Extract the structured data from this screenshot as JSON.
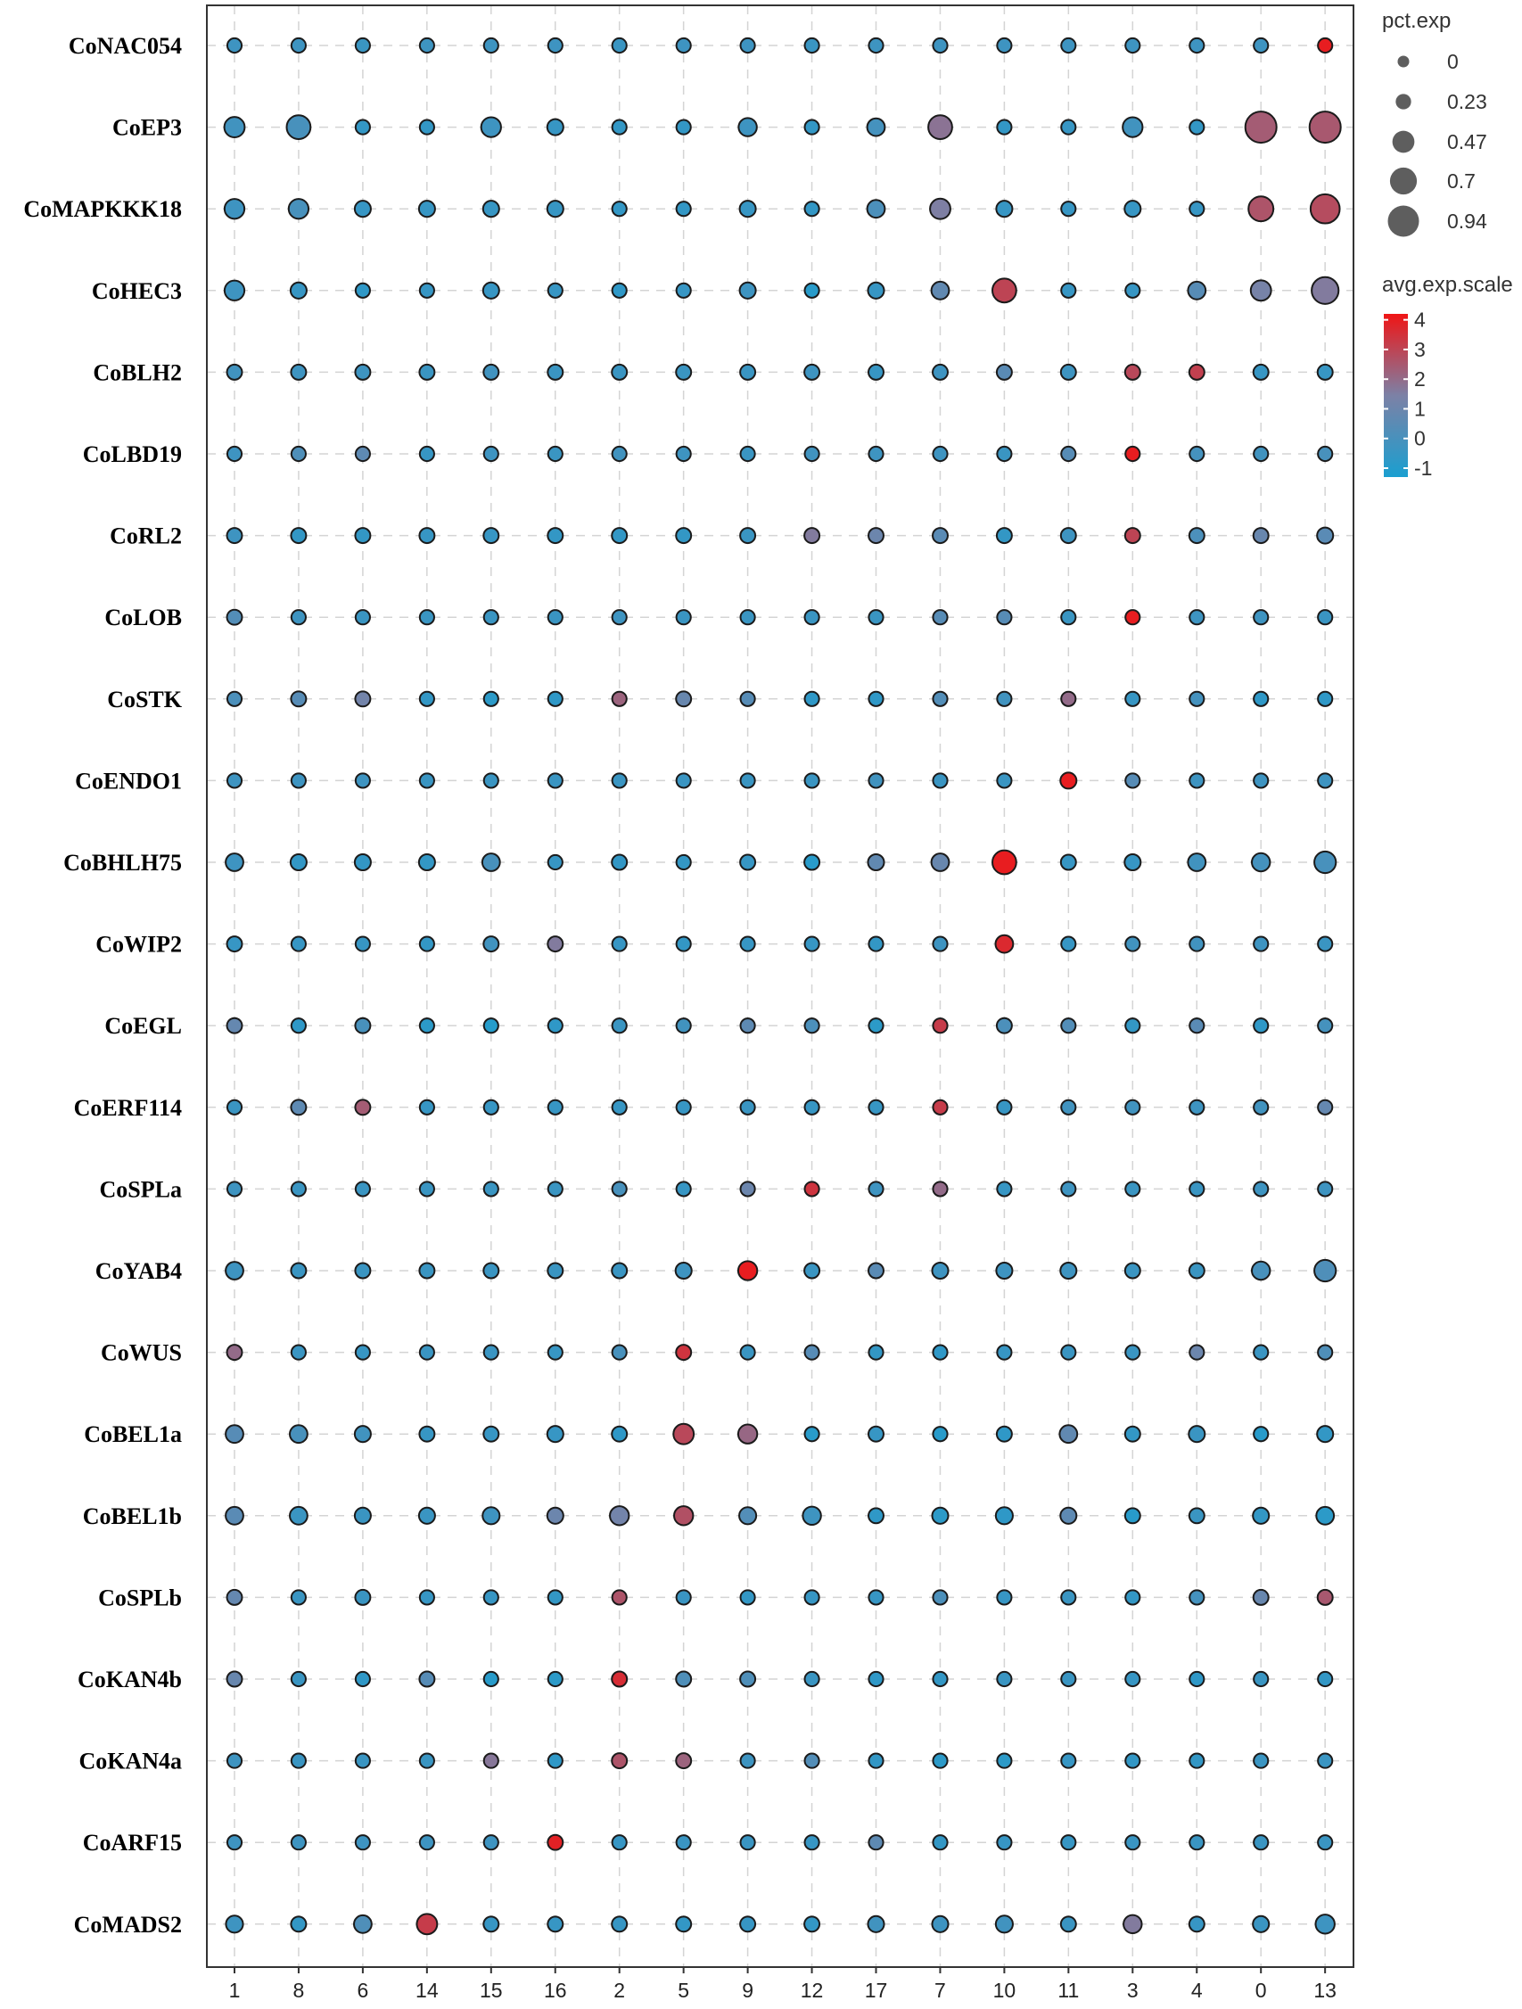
{
  "chart_data": {
    "type": "dotplot",
    "clusters": [
      "1",
      "8",
      "6",
      "14",
      "15",
      "16",
      "2",
      "5",
      "9",
      "12",
      "17",
      "7",
      "10",
      "11",
      "3",
      "4",
      "0",
      "13"
    ],
    "genes": [
      "CoNAC054",
      "CoEP3",
      "CoMAPKKK18",
      "CoHEC3",
      "CoBLH2",
      "CoLBD19",
      "CoRL2",
      "CoLOB",
      "CoSTK",
      "CoENDO1",
      "CoBHLH75",
      "CoWIP2",
      "CoEGL",
      "CoERF114",
      "CoSPLa",
      "CoYAB4",
      "CoWUS",
      "CoBEL1a",
      "CoBEL1b",
      "CoSPLb",
      "CoKAN4b",
      "CoKAN4a",
      "CoARF15",
      "CoMADS2"
    ],
    "avg_exp_scale": [
      [
        -0.3,
        -0.3,
        -0.4,
        -0.3,
        -0.3,
        -0.3,
        -0.4,
        -0.3,
        -0.3,
        -0.4,
        -0.3,
        -0.3,
        -0.3,
        -0.3,
        -0.3,
        -0.3,
        -0.3,
        4.0
      ],
      [
        -0.2,
        0.0,
        -0.6,
        -0.6,
        -0.3,
        -0.5,
        -0.6,
        -0.6,
        -0.3,
        -0.6,
        -0.1,
        1.8,
        -0.6,
        -0.5,
        -0.2,
        -0.6,
        2.4,
        2.5
      ],
      [
        -0.3,
        0.0,
        -0.5,
        -0.5,
        -0.5,
        -0.5,
        -0.6,
        -0.6,
        -0.5,
        -0.6,
        0.1,
        1.5,
        -0.5,
        -0.5,
        -0.5,
        -0.5,
        2.6,
        2.8
      ],
      [
        -0.3,
        -0.5,
        -0.7,
        -0.5,
        -0.5,
        -0.5,
        -0.7,
        -0.5,
        -0.3,
        -0.9,
        -0.5,
        0.7,
        3.0,
        -0.5,
        -0.5,
        0.4,
        1.3,
        1.6
      ],
      [
        -0.2,
        -0.3,
        -0.3,
        -0.4,
        -0.2,
        -0.4,
        -0.4,
        -0.4,
        -0.4,
        -0.3,
        -0.5,
        -0.3,
        0.5,
        -0.3,
        2.9,
        3.1,
        -0.5,
        -0.5
      ],
      [
        -0.3,
        0.2,
        0.6,
        -0.5,
        -0.3,
        -0.4,
        -0.2,
        -0.3,
        -0.4,
        -0.2,
        -0.3,
        -0.3,
        -0.4,
        0.4,
        4.0,
        -0.1,
        -0.2,
        0.0
      ],
      [
        -0.3,
        -0.6,
        -0.6,
        -0.5,
        -0.5,
        -0.6,
        -0.6,
        -0.6,
        -0.4,
        1.6,
        1.0,
        0.5,
        -0.6,
        -0.3,
        3.0,
        0.1,
        0.9,
        0.5
      ],
      [
        0.3,
        -0.3,
        -0.4,
        -0.4,
        -0.4,
        -0.4,
        -0.3,
        -0.4,
        -0.4,
        -0.4,
        -0.4,
        0.4,
        0.4,
        -0.4,
        4.0,
        -0.3,
        -0.3,
        -0.4
      ],
      [
        0.1,
        0.4,
        1.2,
        -0.6,
        -0.8,
        -0.7,
        2.2,
        0.9,
        0.4,
        -0.7,
        -0.7,
        0.3,
        -0.2,
        2.0,
        -0.5,
        -0.1,
        -0.7,
        -0.7
      ],
      [
        -0.3,
        -0.3,
        -0.3,
        -0.4,
        -0.4,
        -0.4,
        -0.4,
        -0.4,
        -0.4,
        -0.4,
        -0.2,
        -0.4,
        -0.4,
        4.0,
        0.4,
        -0.3,
        -0.3,
        -0.3
      ],
      [
        -0.3,
        -0.6,
        -0.6,
        -0.6,
        0.0,
        -0.5,
        -0.6,
        -0.6,
        -0.5,
        -0.9,
        0.7,
        0.9,
        4.0,
        -0.5,
        -0.5,
        -0.2,
        -0.1,
        0.0
      ],
      [
        -0.5,
        -0.5,
        -0.5,
        -0.6,
        -0.2,
        1.6,
        -0.5,
        -0.6,
        -0.5,
        -0.5,
        -0.6,
        -0.3,
        3.7,
        -0.5,
        -0.2,
        -0.2,
        -0.3,
        -0.4
      ],
      [
        0.8,
        -0.7,
        0.0,
        -0.8,
        -1.0,
        -0.7,
        -0.4,
        -0.2,
        0.6,
        0.1,
        -0.8,
        3.2,
        0.1,
        0.3,
        -0.6,
        0.5,
        -0.7,
        -0.1
      ],
      [
        -0.4,
        0.6,
        2.4,
        -0.5,
        -0.5,
        -0.5,
        -0.5,
        -0.5,
        -0.4,
        -0.5,
        -0.5,
        3.2,
        -0.5,
        -0.2,
        -0.2,
        -0.3,
        -0.2,
        0.8
      ],
      [
        -0.3,
        -0.4,
        -0.4,
        -0.4,
        -0.4,
        -0.4,
        0.0,
        -0.5,
        1.0,
        3.4,
        -0.3,
        2.0,
        -0.5,
        -0.3,
        -0.4,
        -0.4,
        -0.3,
        -0.3
      ],
      [
        -0.3,
        -0.4,
        -0.4,
        -0.4,
        -0.4,
        -0.4,
        -0.4,
        -0.3,
        4.0,
        -0.4,
        0.5,
        -0.3,
        -0.3,
        -0.3,
        -0.4,
        -0.4,
        0.0,
        0.2
      ],
      [
        2.0,
        -0.4,
        -0.5,
        -0.4,
        -0.4,
        -0.5,
        0.0,
        3.4,
        -0.4,
        0.4,
        -0.6,
        -0.7,
        -0.5,
        -0.4,
        -0.4,
        1.0,
        -0.4,
        0.2
      ],
      [
        0.4,
        0.0,
        -0.2,
        -0.5,
        -0.5,
        -0.5,
        -0.7,
        2.9,
        2.1,
        -0.9,
        -0.5,
        -0.9,
        -0.7,
        0.7,
        -0.6,
        -0.4,
        -0.9,
        -0.6
      ],
      [
        0.5,
        -0.4,
        -0.4,
        -0.4,
        -0.3,
        1.0,
        1.2,
        2.7,
        0.3,
        -0.3,
        -0.7,
        -0.8,
        -0.7,
        0.6,
        -0.9,
        -0.4,
        -0.6,
        -0.8
      ],
      [
        0.8,
        -0.4,
        -0.4,
        -0.5,
        -0.5,
        -0.6,
        2.6,
        -0.4,
        -0.6,
        -0.5,
        -0.5,
        0.1,
        -0.5,
        -0.4,
        -0.6,
        -0.1,
        0.9,
        2.5
      ],
      [
        0.9,
        -0.4,
        -0.7,
        0.4,
        -0.9,
        -0.8,
        3.6,
        0.2,
        0.2,
        -0.4,
        -0.7,
        -0.6,
        -0.4,
        -0.4,
        -0.5,
        -0.7,
        -0.4,
        -0.6
      ],
      [
        -0.3,
        -0.4,
        -0.4,
        -0.4,
        1.7,
        -0.7,
        2.6,
        2.2,
        -0.3,
        0.3,
        -0.6,
        -0.8,
        -0.8,
        -0.5,
        -0.6,
        -0.6,
        -0.4,
        -0.4
      ],
      [
        -0.3,
        -0.3,
        -0.3,
        -0.3,
        -0.3,
        3.9,
        -0.5,
        -0.4,
        -0.4,
        -0.5,
        0.6,
        -0.6,
        -0.5,
        -0.5,
        -0.4,
        -0.4,
        -0.4,
        -0.4
      ],
      [
        -0.3,
        -0.6,
        0.2,
        3.2,
        -0.5,
        -0.5,
        -0.5,
        -0.6,
        -0.5,
        -0.6,
        -0.2,
        -0.3,
        -0.2,
        -0.4,
        1.6,
        -0.5,
        -0.4,
        -0.3
      ]
    ],
    "pct_exp": [
      [
        0.2,
        0.2,
        0.2,
        0.2,
        0.2,
        0.2,
        0.2,
        0.2,
        0.2,
        0.2,
        0.2,
        0.2,
        0.2,
        0.2,
        0.2,
        0.2,
        0.2,
        0.2
      ],
      [
        0.4,
        0.55,
        0.2,
        0.2,
        0.38,
        0.25,
        0.2,
        0.2,
        0.32,
        0.2,
        0.3,
        0.55,
        0.2,
        0.2,
        0.38,
        0.2,
        0.94,
        0.94
      ],
      [
        0.38,
        0.38,
        0.25,
        0.25,
        0.25,
        0.25,
        0.2,
        0.2,
        0.25,
        0.2,
        0.3,
        0.4,
        0.25,
        0.2,
        0.25,
        0.2,
        0.6,
        0.82
      ],
      [
        0.38,
        0.25,
        0.2,
        0.2,
        0.25,
        0.2,
        0.2,
        0.2,
        0.25,
        0.2,
        0.25,
        0.3,
        0.55,
        0.2,
        0.2,
        0.3,
        0.4,
        0.7
      ],
      [
        0.22,
        0.22,
        0.22,
        0.22,
        0.22,
        0.22,
        0.22,
        0.22,
        0.22,
        0.22,
        0.22,
        0.22,
        0.22,
        0.22,
        0.22,
        0.22,
        0.22,
        0.22
      ],
      [
        0.2,
        0.2,
        0.2,
        0.2,
        0.2,
        0.2,
        0.2,
        0.2,
        0.2,
        0.2,
        0.2,
        0.2,
        0.2,
        0.2,
        0.2,
        0.2,
        0.2,
        0.2
      ],
      [
        0.22,
        0.22,
        0.22,
        0.22,
        0.22,
        0.22,
        0.22,
        0.22,
        0.22,
        0.22,
        0.22,
        0.22,
        0.22,
        0.22,
        0.22,
        0.22,
        0.22,
        0.25
      ],
      [
        0.22,
        0.2,
        0.2,
        0.2,
        0.2,
        0.2,
        0.2,
        0.2,
        0.2,
        0.2,
        0.2,
        0.2,
        0.2,
        0.2,
        0.2,
        0.2,
        0.2,
        0.2
      ],
      [
        0.2,
        0.22,
        0.22,
        0.2,
        0.2,
        0.2,
        0.2,
        0.22,
        0.2,
        0.2,
        0.2,
        0.2,
        0.2,
        0.2,
        0.2,
        0.2,
        0.2,
        0.2
      ],
      [
        0.2,
        0.2,
        0.2,
        0.2,
        0.2,
        0.2,
        0.2,
        0.2,
        0.2,
        0.2,
        0.2,
        0.2,
        0.2,
        0.25,
        0.2,
        0.2,
        0.2,
        0.2
      ],
      [
        0.3,
        0.25,
        0.25,
        0.25,
        0.3,
        0.2,
        0.22,
        0.2,
        0.22,
        0.22,
        0.25,
        0.3,
        0.55,
        0.22,
        0.25,
        0.3,
        0.32,
        0.45
      ],
      [
        0.22,
        0.2,
        0.2,
        0.2,
        0.22,
        0.22,
        0.2,
        0.2,
        0.2,
        0.2,
        0.2,
        0.2,
        0.3,
        0.2,
        0.2,
        0.2,
        0.2,
        0.2
      ],
      [
        0.22,
        0.2,
        0.22,
        0.2,
        0.2,
        0.2,
        0.2,
        0.2,
        0.2,
        0.2,
        0.2,
        0.2,
        0.22,
        0.2,
        0.2,
        0.2,
        0.2,
        0.2
      ],
      [
        0.2,
        0.22,
        0.22,
        0.2,
        0.2,
        0.2,
        0.2,
        0.2,
        0.2,
        0.2,
        0.2,
        0.2,
        0.2,
        0.2,
        0.2,
        0.2,
        0.2,
        0.2
      ],
      [
        0.2,
        0.2,
        0.2,
        0.2,
        0.2,
        0.2,
        0.2,
        0.2,
        0.2,
        0.2,
        0.2,
        0.2,
        0.2,
        0.2,
        0.2,
        0.2,
        0.2,
        0.2
      ],
      [
        0.3,
        0.22,
        0.22,
        0.22,
        0.22,
        0.22,
        0.22,
        0.25,
        0.35,
        0.22,
        0.22,
        0.25,
        0.25,
        0.25,
        0.22,
        0.22,
        0.32,
        0.45
      ],
      [
        0.22,
        0.2,
        0.2,
        0.2,
        0.2,
        0.2,
        0.2,
        0.22,
        0.2,
        0.2,
        0.2,
        0.2,
        0.2,
        0.2,
        0.2,
        0.2,
        0.2,
        0.2
      ],
      [
        0.3,
        0.3,
        0.25,
        0.22,
        0.22,
        0.25,
        0.22,
        0.4,
        0.35,
        0.2,
        0.22,
        0.2,
        0.22,
        0.3,
        0.22,
        0.25,
        0.2,
        0.25
      ],
      [
        0.3,
        0.3,
        0.25,
        0.25,
        0.28,
        0.25,
        0.35,
        0.35,
        0.28,
        0.32,
        0.22,
        0.25,
        0.28,
        0.25,
        0.22,
        0.22,
        0.25,
        0.3
      ],
      [
        0.22,
        0.2,
        0.22,
        0.2,
        0.2,
        0.2,
        0.2,
        0.2,
        0.2,
        0.2,
        0.2,
        0.2,
        0.2,
        0.2,
        0.2,
        0.2,
        0.22,
        0.22
      ],
      [
        0.22,
        0.2,
        0.2,
        0.22,
        0.2,
        0.2,
        0.22,
        0.22,
        0.22,
        0.2,
        0.2,
        0.2,
        0.2,
        0.2,
        0.2,
        0.2,
        0.2,
        0.2
      ],
      [
        0.2,
        0.2,
        0.2,
        0.2,
        0.2,
        0.2,
        0.22,
        0.22,
        0.2,
        0.2,
        0.2,
        0.2,
        0.2,
        0.2,
        0.2,
        0.2,
        0.2,
        0.2
      ],
      [
        0.2,
        0.2,
        0.2,
        0.2,
        0.2,
        0.22,
        0.2,
        0.2,
        0.2,
        0.2,
        0.2,
        0.2,
        0.2,
        0.2,
        0.2,
        0.2,
        0.2,
        0.2
      ],
      [
        0.28,
        0.22,
        0.3,
        0.4,
        0.22,
        0.22,
        0.22,
        0.22,
        0.22,
        0.22,
        0.25,
        0.25,
        0.28,
        0.22,
        0.32,
        0.22,
        0.25,
        0.35
      ]
    ],
    "size_legend": {
      "title": "pct.exp",
      "values": [
        0,
        0.23,
        0.47,
        0.7,
        0.94
      ],
      "labels": [
        "0",
        "0.23",
        "0.47",
        "0.7",
        "0.94"
      ]
    },
    "color_legend": {
      "title": "avg.exp.scale",
      "range": [
        -1.3,
        4.2
      ],
      "ticks": [
        4,
        3,
        2,
        1,
        0,
        -1
      ],
      "tick_labels": [
        "4",
        "3",
        "2",
        "1",
        "0",
        "-1"
      ],
      "low_color": "#1a9fd0",
      "mid_color": "#7c81a6",
      "high_color": "#f01515"
    },
    "grid": true,
    "legend_position": "right"
  }
}
